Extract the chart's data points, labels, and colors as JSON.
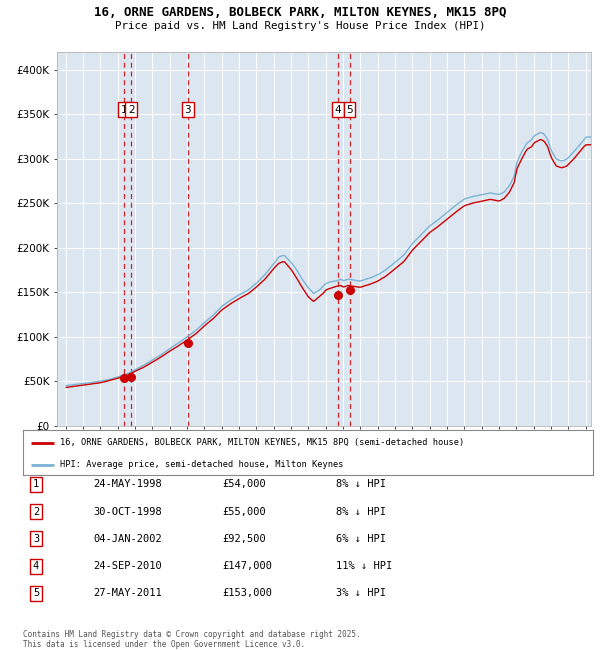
{
  "title_line1": "16, ORNE GARDENS, BOLBECK PARK, MILTON KEYNES, MK15 8PQ",
  "title_line2": "Price paid vs. HM Land Registry's House Price Index (HPI)",
  "plot_bg_color": "#dce6f1",
  "grid_color": "#ffffff",
  "hpi_color": "#7ab3d4",
  "price_color": "#cc0000",
  "ylim": [
    0,
    420000
  ],
  "yticks": [
    0,
    50000,
    100000,
    150000,
    200000,
    250000,
    300000,
    350000,
    400000
  ],
  "ytick_labels": [
    "£0",
    "£50K",
    "£100K",
    "£150K",
    "£200K",
    "£250K",
    "£300K",
    "£350K",
    "£400K"
  ],
  "sale_dates": [
    "1998-05-24",
    "1998-10-30",
    "2002-01-04",
    "2010-09-24",
    "2011-05-27"
  ],
  "sale_prices": [
    54000,
    55000,
    92500,
    147000,
    153000
  ],
  "sale_labels": [
    "1",
    "2",
    "3",
    "4",
    "5"
  ],
  "legend_line1": "16, ORNE GARDENS, BOLBECK PARK, MILTON KEYNES, MK15 8PQ (semi-detached house)",
  "legend_line2": "HPI: Average price, semi-detached house, Milton Keynes",
  "table_rows": [
    [
      "1",
      "24-MAY-1998",
      "£54,000",
      "8% ↓ HPI"
    ],
    [
      "2",
      "30-OCT-1998",
      "£55,000",
      "8% ↓ HPI"
    ],
    [
      "3",
      "04-JAN-2002",
      "£92,500",
      "6% ↓ HPI"
    ],
    [
      "4",
      "24-SEP-2010",
      "£147,000",
      "11% ↓ HPI"
    ],
    [
      "5",
      "27-MAY-2011",
      "£153,000",
      "3% ↓ HPI"
    ]
  ],
  "footer": "Contains HM Land Registry data © Crown copyright and database right 2025.\nThis data is licensed under the Open Government Licence v3.0.",
  "xstart_year": 1995,
  "xend_year": 2025
}
